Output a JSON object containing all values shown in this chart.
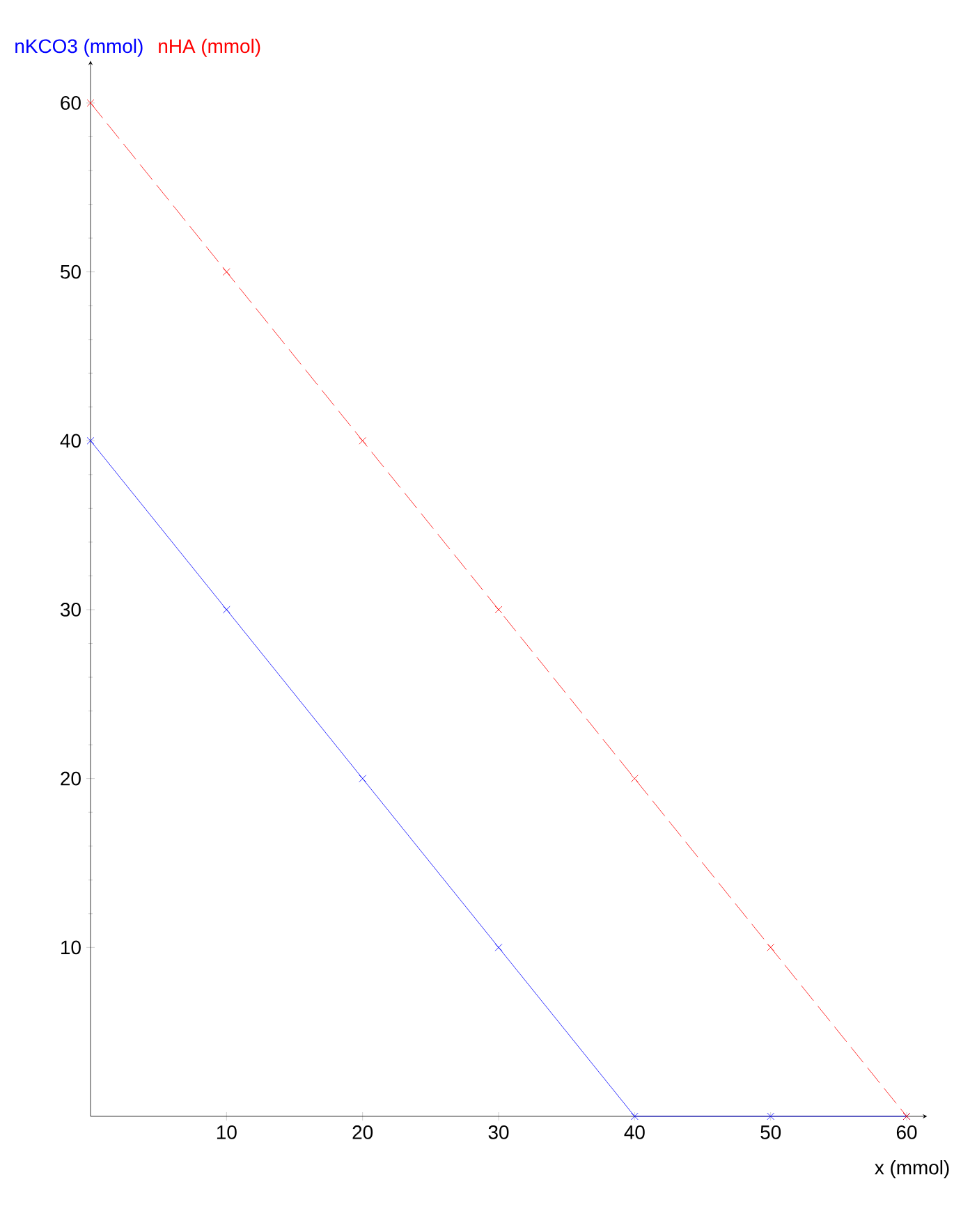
{
  "chart_data": {
    "type": "line",
    "xlabel": "x (mmol)",
    "x": [
      0,
      10,
      20,
      30,
      40,
      50,
      60
    ],
    "series": [
      {
        "name": "nKCO3 (mmol)",
        "color": "#0000ff",
        "values": [
          40,
          30,
          20,
          10,
          0,
          0,
          0
        ],
        "line_style": "solid"
      },
      {
        "name": "nHA (mmol)",
        "color": "#ff0000",
        "values": [
          60,
          50,
          40,
          30,
          20,
          10,
          0
        ],
        "line_style": "dashed"
      }
    ],
    "xlim": [
      0,
      61.5
    ],
    "ylim": [
      0,
      62.5
    ],
    "xticks": [
      10,
      20,
      30,
      40,
      50,
      60
    ],
    "yticks": [
      10,
      20,
      30,
      40,
      50,
      60
    ],
    "marker": "cross",
    "legend": "top left",
    "grid": false
  }
}
